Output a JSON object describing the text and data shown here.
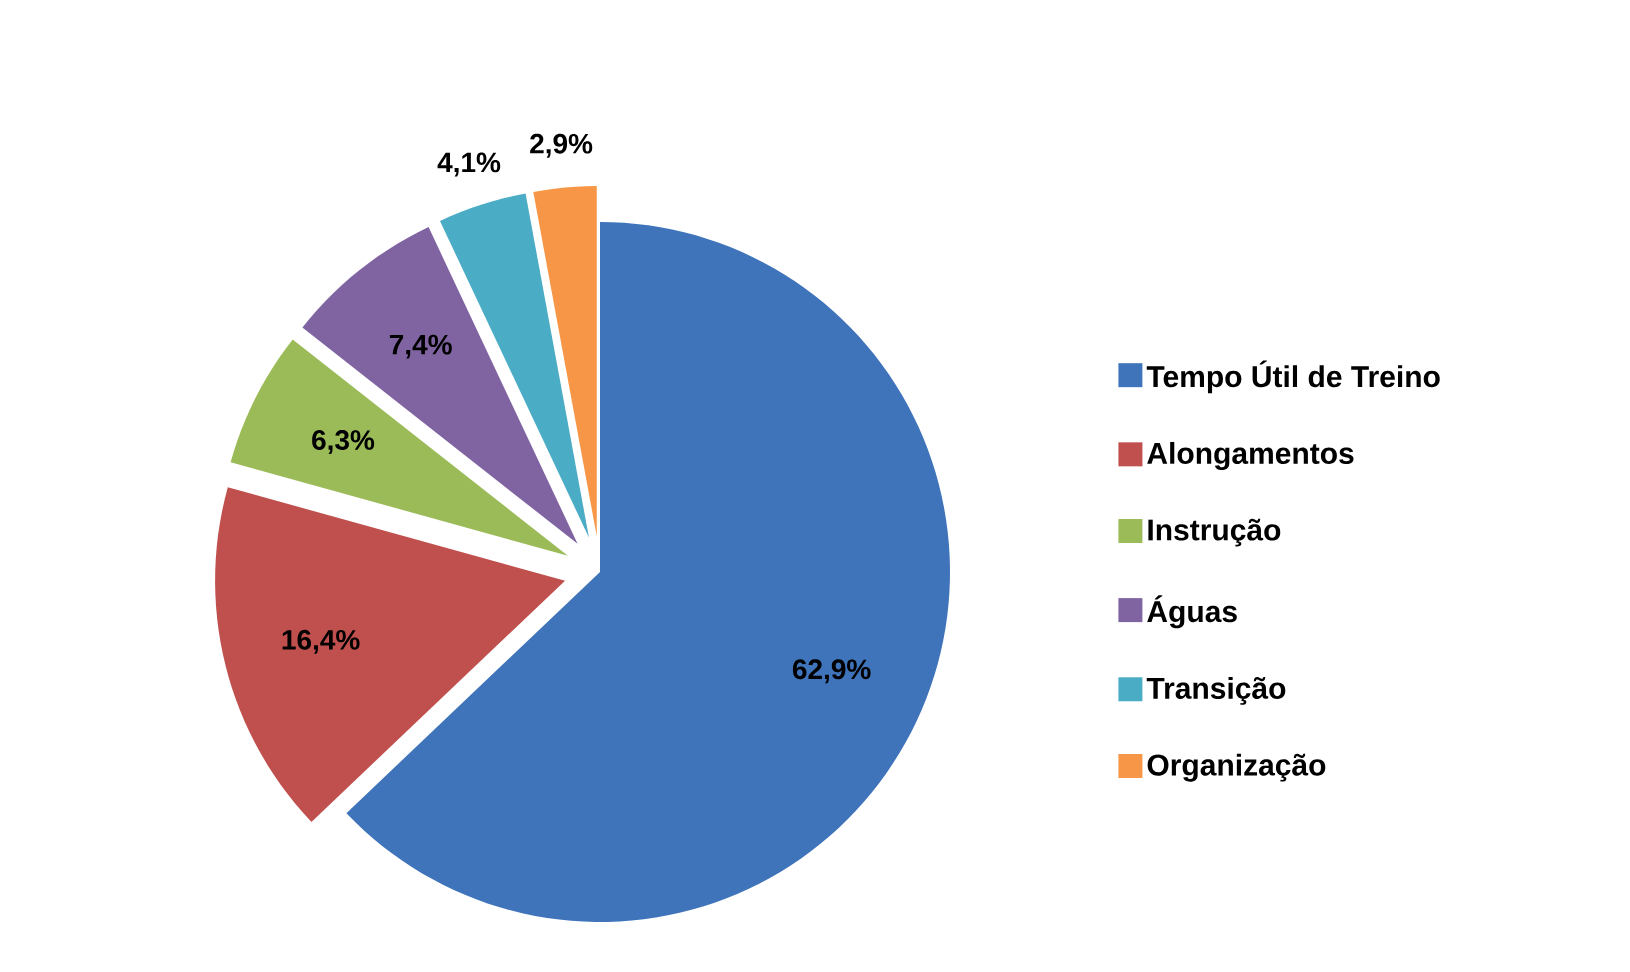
{
  "chart_data": {
    "type": "pie",
    "categories": [
      "Tempo Útil de Treino",
      "Alongamentos",
      "Instrução",
      "Águas",
      "Transição",
      "Organização"
    ],
    "values": [
      62.9,
      16.4,
      6.3,
      7.4,
      4.1,
      2.9
    ],
    "value_labels": [
      "62,9%",
      "16,4%",
      "6,3%",
      "7,4%",
      "4,1%",
      "2,9%"
    ],
    "colors": [
      "#3f74bb",
      "#c0504d",
      "#9bbb59",
      "#8064a2",
      "#4bacc6",
      "#f79646"
    ],
    "legend": "right"
  }
}
